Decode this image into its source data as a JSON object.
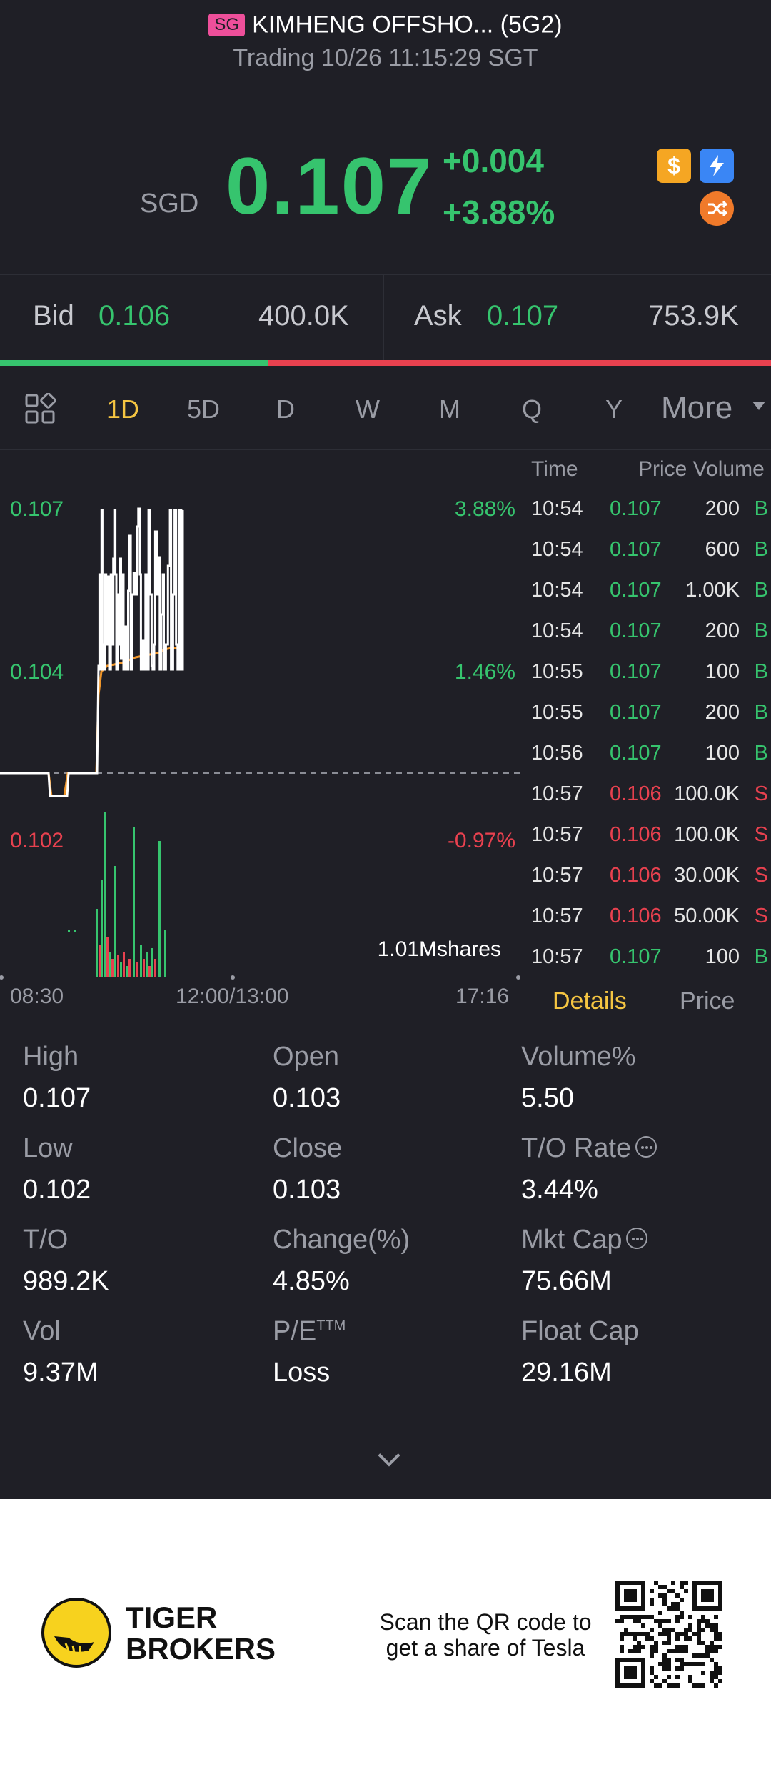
{
  "header": {
    "market_badge": "SG",
    "title": "KIMHENG OFFSHO... (5G2)",
    "status": "Trading 10/26 11:15:29 SGT",
    "currency": "SGD",
    "last_price": "0.107",
    "change_abs": "+0.004",
    "change_pct": "+3.88%",
    "icons": [
      "dollar-icon",
      "flash-icon",
      "shuffle-icon"
    ]
  },
  "bid_ask": {
    "bid_label": "Bid",
    "bid_price": "0.106",
    "bid_size": "400.0K",
    "ask_label": "Ask",
    "ask_price": "0.107",
    "ask_size": "753.9K",
    "bid_ratio": 0.347
  },
  "tabs": {
    "items": [
      "1D",
      "5D",
      "D",
      "W",
      "M",
      "Q",
      "Y"
    ],
    "active": "1D",
    "more": "More"
  },
  "chart": {
    "y_high": "0.107",
    "y_mid": "0.104",
    "y_low": "0.102",
    "pct_high": "3.88%",
    "pct_mid": "1.46%",
    "pct_low": "-0.97%",
    "volume_label": "1.01Mshares",
    "x_start": "08:30",
    "x_mid": "12:00/13:00",
    "x_end": "17:16"
  },
  "ticks": {
    "header_time": "Time",
    "header_pv": "Price Volume",
    "rows": [
      {
        "time": "10:54",
        "price": "0.107",
        "vol": "200",
        "side": "B"
      },
      {
        "time": "10:54",
        "price": "0.107",
        "vol": "600",
        "side": "B"
      },
      {
        "time": "10:54",
        "price": "0.107",
        "vol": "1.00K",
        "side": "B"
      },
      {
        "time": "10:54",
        "price": "0.107",
        "vol": "200",
        "side": "B"
      },
      {
        "time": "10:55",
        "price": "0.107",
        "vol": "100",
        "side": "B"
      },
      {
        "time": "10:55",
        "price": "0.107",
        "vol": "200",
        "side": "B"
      },
      {
        "time": "10:56",
        "price": "0.107",
        "vol": "100",
        "side": "B"
      },
      {
        "time": "10:57",
        "price": "0.106",
        "vol": "100.0K",
        "side": "S"
      },
      {
        "time": "10:57",
        "price": "0.106",
        "vol": "100.0K",
        "side": "S"
      },
      {
        "time": "10:57",
        "price": "0.106",
        "vol": "30.00K",
        "side": "S"
      },
      {
        "time": "10:57",
        "price": "0.106",
        "vol": "50.00K",
        "side": "S"
      },
      {
        "time": "10:57",
        "price": "0.107",
        "vol": "100",
        "side": "B"
      }
    ]
  },
  "panel_tabs": {
    "details": "Details",
    "price": "Price"
  },
  "details": {
    "high_label": "High",
    "high": "0.107",
    "open_label": "Open",
    "open": "0.103",
    "volpct_label": "Volume%",
    "volpct": "5.50",
    "low_label": "Low",
    "low": "0.102",
    "close_label": "Close",
    "close": "0.103",
    "torate_label": "T/O Rate",
    "torate": "3.44%",
    "to_label": "T/O",
    "to": "989.2K",
    "change_label": "Change(%)",
    "change": "4.85%",
    "mktcap_label": "Mkt Cap",
    "mktcap": "75.66M",
    "vol_label": "Vol",
    "vol": "9.37M",
    "pe_label": "P/E",
    "pe_sup": "TTM",
    "pe": "Loss",
    "floatcap_label": "Float Cap",
    "floatcap": "29.16M"
  },
  "footer": {
    "logo_line1": "TIGER",
    "logo_line2": "BROKERS",
    "scan_line1": "Scan the QR code to",
    "scan_line2": "get a share of Tesla"
  },
  "colors": {
    "up": "#36c46e",
    "down": "#e8414f",
    "accent": "#f5c542",
    "avg_line": "#f0962a"
  }
}
